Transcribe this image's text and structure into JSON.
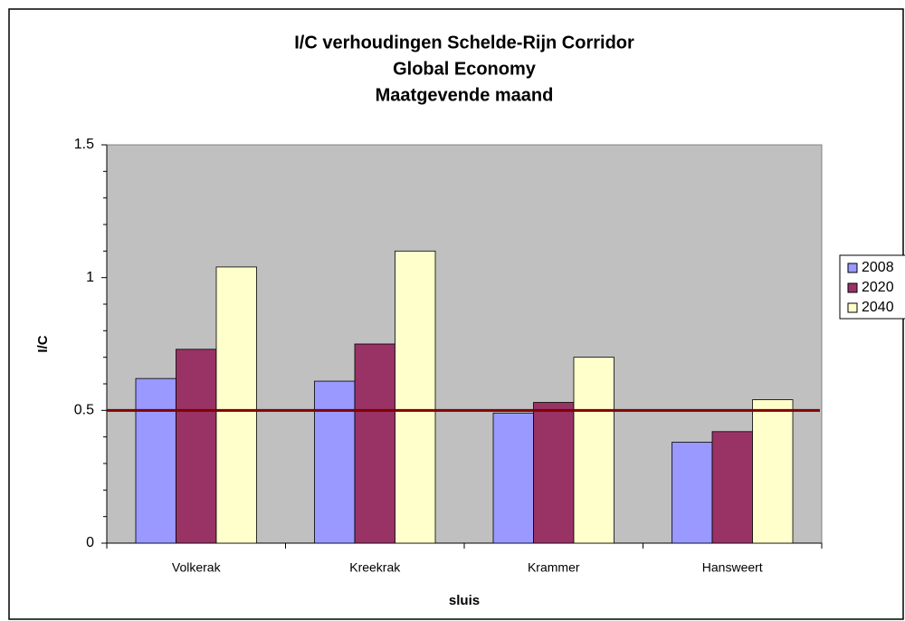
{
  "chart_data": {
    "type": "bar",
    "title": [
      "I/C verhoudingen Schelde-Rijn Corridor",
      "Global Economy",
      "Maatgevende maand"
    ],
    "xlabel": "sluis",
    "ylabel": "I/C",
    "categories": [
      "Volkerak",
      "Kreekrak",
      "Krammer",
      "Hansweert"
    ],
    "series": [
      {
        "name": "2008",
        "color": "#9999ff",
        "values": [
          0.62,
          0.61,
          0.49,
          0.38
        ]
      },
      {
        "name": "2020",
        "color": "#993366",
        "values": [
          0.73,
          0.75,
          0.53,
          0.42
        ]
      },
      {
        "name": "2040",
        "color": "#ffffcc",
        "values": [
          1.04,
          1.1,
          0.7,
          0.54
        ]
      }
    ],
    "ylim": [
      0,
      1.5
    ],
    "yticks": [
      0,
      0.5,
      1,
      1.5
    ],
    "reference_line": {
      "value": 0.5,
      "color": "#800000"
    },
    "plot_background": "#c0c0c0",
    "legend": "right",
    "grid": false
  }
}
